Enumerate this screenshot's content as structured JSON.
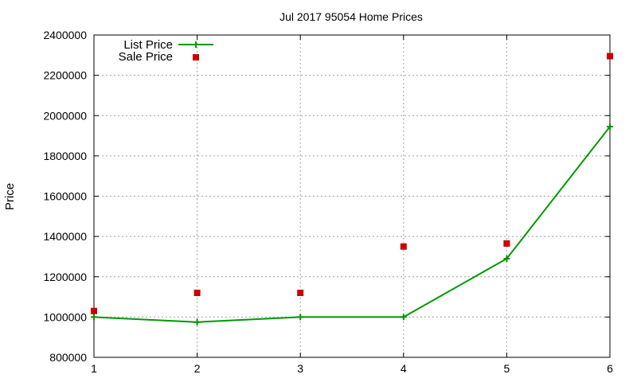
{
  "chart_data": {
    "type": "line",
    "title": "Jul 2017 95054 Home Prices",
    "xlabel": "",
    "ylabel": "Price",
    "xlim": [
      1,
      6
    ],
    "ylim": [
      800000,
      2400000
    ],
    "xticks": [
      "1",
      "2",
      "3",
      "4",
      "5",
      "6"
    ],
    "yticks": [
      "800000",
      "1000000",
      "1200000",
      "1400000",
      "1600000",
      "1800000",
      "2000000",
      "2200000",
      "2400000"
    ],
    "grid": true,
    "legend_position": "top-left",
    "x": [
      1,
      2,
      3,
      4,
      5,
      6
    ],
    "series": [
      {
        "name": "List Price",
        "style": "line-with-plus-markers",
        "color": "#009900",
        "values": [
          1000000,
          975000,
          1000000,
          1000000,
          1290000,
          1945000
        ]
      },
      {
        "name": "Sale Price",
        "style": "square-markers",
        "color": "#cc0000",
        "values": [
          1030000,
          1120000,
          1120000,
          1350000,
          1365000,
          2295000
        ]
      }
    ]
  }
}
